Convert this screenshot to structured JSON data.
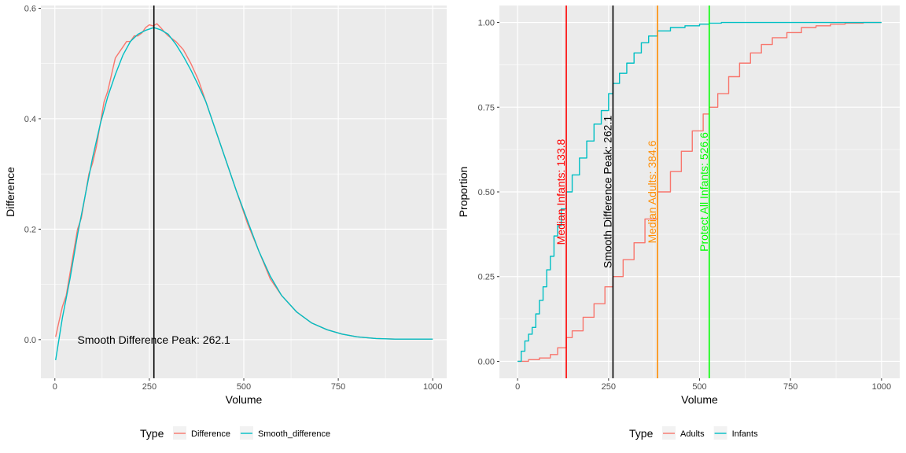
{
  "chart_data": [
    {
      "type": "line",
      "xlabel": "Volume",
      "ylabel": "Difference",
      "xlim": [
        -37,
        1037
      ],
      "ylim": [
        -0.07,
        0.605
      ],
      "xticks": [
        0,
        250,
        500,
        750,
        1000
      ],
      "xtick_labels": [
        "0",
        "250",
        "500",
        "750",
        "1000"
      ],
      "yticks": [
        0.0,
        0.2,
        0.4,
        0.6
      ],
      "ytick_labels": [
        "0.0",
        "0.2",
        "0.4",
        "0.6"
      ],
      "grid": true,
      "legend": {
        "title": "Type",
        "placement": "bottom",
        "entries": [
          {
            "label": "Difference",
            "color": "#F8766D"
          },
          {
            "label": "Smooth_difference",
            "color": "#00BFC4"
          }
        ]
      },
      "series": [
        {
          "name": "Difference",
          "color": "#F8766D",
          "x": [
            2,
            10,
            20,
            30,
            40,
            50,
            60,
            70,
            80,
            90,
            100,
            110,
            120,
            130,
            140,
            150,
            160,
            170,
            180,
            190,
            200,
            210,
            220,
            230,
            240,
            250,
            260,
            270,
            280,
            290,
            300,
            320,
            340,
            360,
            380,
            400,
            420,
            450,
            480,
            510,
            540,
            570,
            600,
            640,
            680,
            720,
            760,
            800,
            850,
            900,
            950,
            1000
          ],
          "y": [
            0.005,
            0.03,
            0.06,
            0.08,
            0.12,
            0.16,
            0.2,
            0.22,
            0.26,
            0.3,
            0.32,
            0.35,
            0.39,
            0.43,
            0.45,
            0.48,
            0.51,
            0.52,
            0.53,
            0.54,
            0.54,
            0.55,
            0.55,
            0.555,
            0.565,
            0.57,
            0.568,
            0.572,
            0.565,
            0.557,
            0.55,
            0.54,
            0.525,
            0.5,
            0.47,
            0.43,
            0.39,
            0.33,
            0.27,
            0.21,
            0.16,
            0.11,
            0.08,
            0.05,
            0.03,
            0.018,
            0.01,
            0.005,
            0.002,
            0.001,
            0.001,
            0.001
          ]
        },
        {
          "name": "Smooth_difference",
          "color": "#00BFC4",
          "x": [
            2,
            20,
            40,
            60,
            80,
            100,
            120,
            140,
            160,
            180,
            200,
            220,
            240,
            262,
            280,
            300,
            320,
            340,
            360,
            380,
            400,
            420,
            450,
            480,
            510,
            540,
            570,
            600,
            640,
            680,
            720,
            760,
            800,
            850,
            900,
            950,
            1000
          ],
          "y": [
            -0.037,
            0.04,
            0.11,
            0.19,
            0.26,
            0.33,
            0.39,
            0.44,
            0.48,
            0.515,
            0.54,
            0.553,
            0.56,
            0.565,
            0.561,
            0.553,
            0.535,
            0.513,
            0.488,
            0.46,
            0.43,
            0.39,
            0.33,
            0.27,
            0.215,
            0.16,
            0.115,
            0.08,
            0.05,
            0.03,
            0.018,
            0.01,
            0.005,
            0.002,
            0.001,
            0.001,
            0.001
          ]
        }
      ],
      "vlines": [
        {
          "x": 262.1,
          "color": "#000000"
        }
      ],
      "annotations": [
        {
          "text": "Smooth Difference Peak: 262.1",
          "x": 262.1,
          "y": 0.0,
          "color": "#000000"
        }
      ]
    },
    {
      "type": "line",
      "xlabel": "Volume",
      "ylabel": "Proportion",
      "xlim": [
        -50,
        1050
      ],
      "ylim": [
        -0.05,
        1.05
      ],
      "xticks": [
        0,
        250,
        500,
        750,
        1000
      ],
      "xtick_labels": [
        "0",
        "250",
        "500",
        "750",
        "1000"
      ],
      "yticks": [
        0.0,
        0.25,
        0.5,
        0.75,
        1.0
      ],
      "ytick_labels": [
        "0.00",
        "0.25",
        "0.50",
        "0.75",
        "1.00"
      ],
      "grid": true,
      "legend": {
        "title": "Type",
        "placement": "bottom",
        "entries": [
          {
            "label": "Adults",
            "color": "#F8766D"
          },
          {
            "label": "Infants",
            "color": "#00BFC4"
          }
        ]
      },
      "series": [
        {
          "name": "Adults",
          "color": "#F8766D",
          "x": [
            0,
            30,
            60,
            90,
            110,
            133.8,
            150,
            180,
            210,
            240,
            262.1,
            290,
            320,
            350,
            384.6,
            420,
            450,
            480,
            510,
            526.6,
            550,
            580,
            610,
            640,
            670,
            700,
            740,
            780,
            820,
            860,
            900,
            950,
            1000
          ],
          "y": [
            0.0,
            0.005,
            0.01,
            0.02,
            0.04,
            0.07,
            0.09,
            0.13,
            0.17,
            0.22,
            0.25,
            0.3,
            0.35,
            0.42,
            0.5,
            0.56,
            0.62,
            0.68,
            0.73,
            0.75,
            0.79,
            0.84,
            0.88,
            0.91,
            0.935,
            0.955,
            0.97,
            0.985,
            0.99,
            0.995,
            0.998,
            1.0,
            1.0
          ]
        },
        {
          "name": "Infants",
          "color": "#00BFC4",
          "x": [
            0,
            10,
            20,
            30,
            40,
            50,
            60,
            70,
            80,
            90,
            100,
            110,
            120,
            133.8,
            150,
            170,
            190,
            210,
            230,
            250,
            262.1,
            280,
            300,
            320,
            340,
            360,
            384.6,
            420,
            460,
            500,
            526.6,
            560,
            600,
            700,
            800,
            900,
            1000
          ],
          "y": [
            0.0,
            0.03,
            0.06,
            0.08,
            0.1,
            0.14,
            0.18,
            0.22,
            0.27,
            0.31,
            0.37,
            0.4,
            0.45,
            0.5,
            0.55,
            0.6,
            0.65,
            0.7,
            0.74,
            0.79,
            0.82,
            0.85,
            0.88,
            0.91,
            0.94,
            0.96,
            0.975,
            0.985,
            0.99,
            0.995,
            0.998,
            1.0,
            1.0,
            1.0,
            1.0,
            1.0,
            1.0
          ]
        }
      ],
      "vlines": [
        {
          "x": 133.8,
          "color": "#FF0000",
          "label": "Median Infants: 133.8"
        },
        {
          "x": 262.1,
          "color": "#000000",
          "label": "Smooth Difference Peak: 262.1"
        },
        {
          "x": 384.6,
          "color": "#FF8C00",
          "label": "Median Adults: 384.6"
        },
        {
          "x": 526.6,
          "color": "#00FF00",
          "label": "Protect All Infants: 526.6"
        }
      ]
    }
  ]
}
